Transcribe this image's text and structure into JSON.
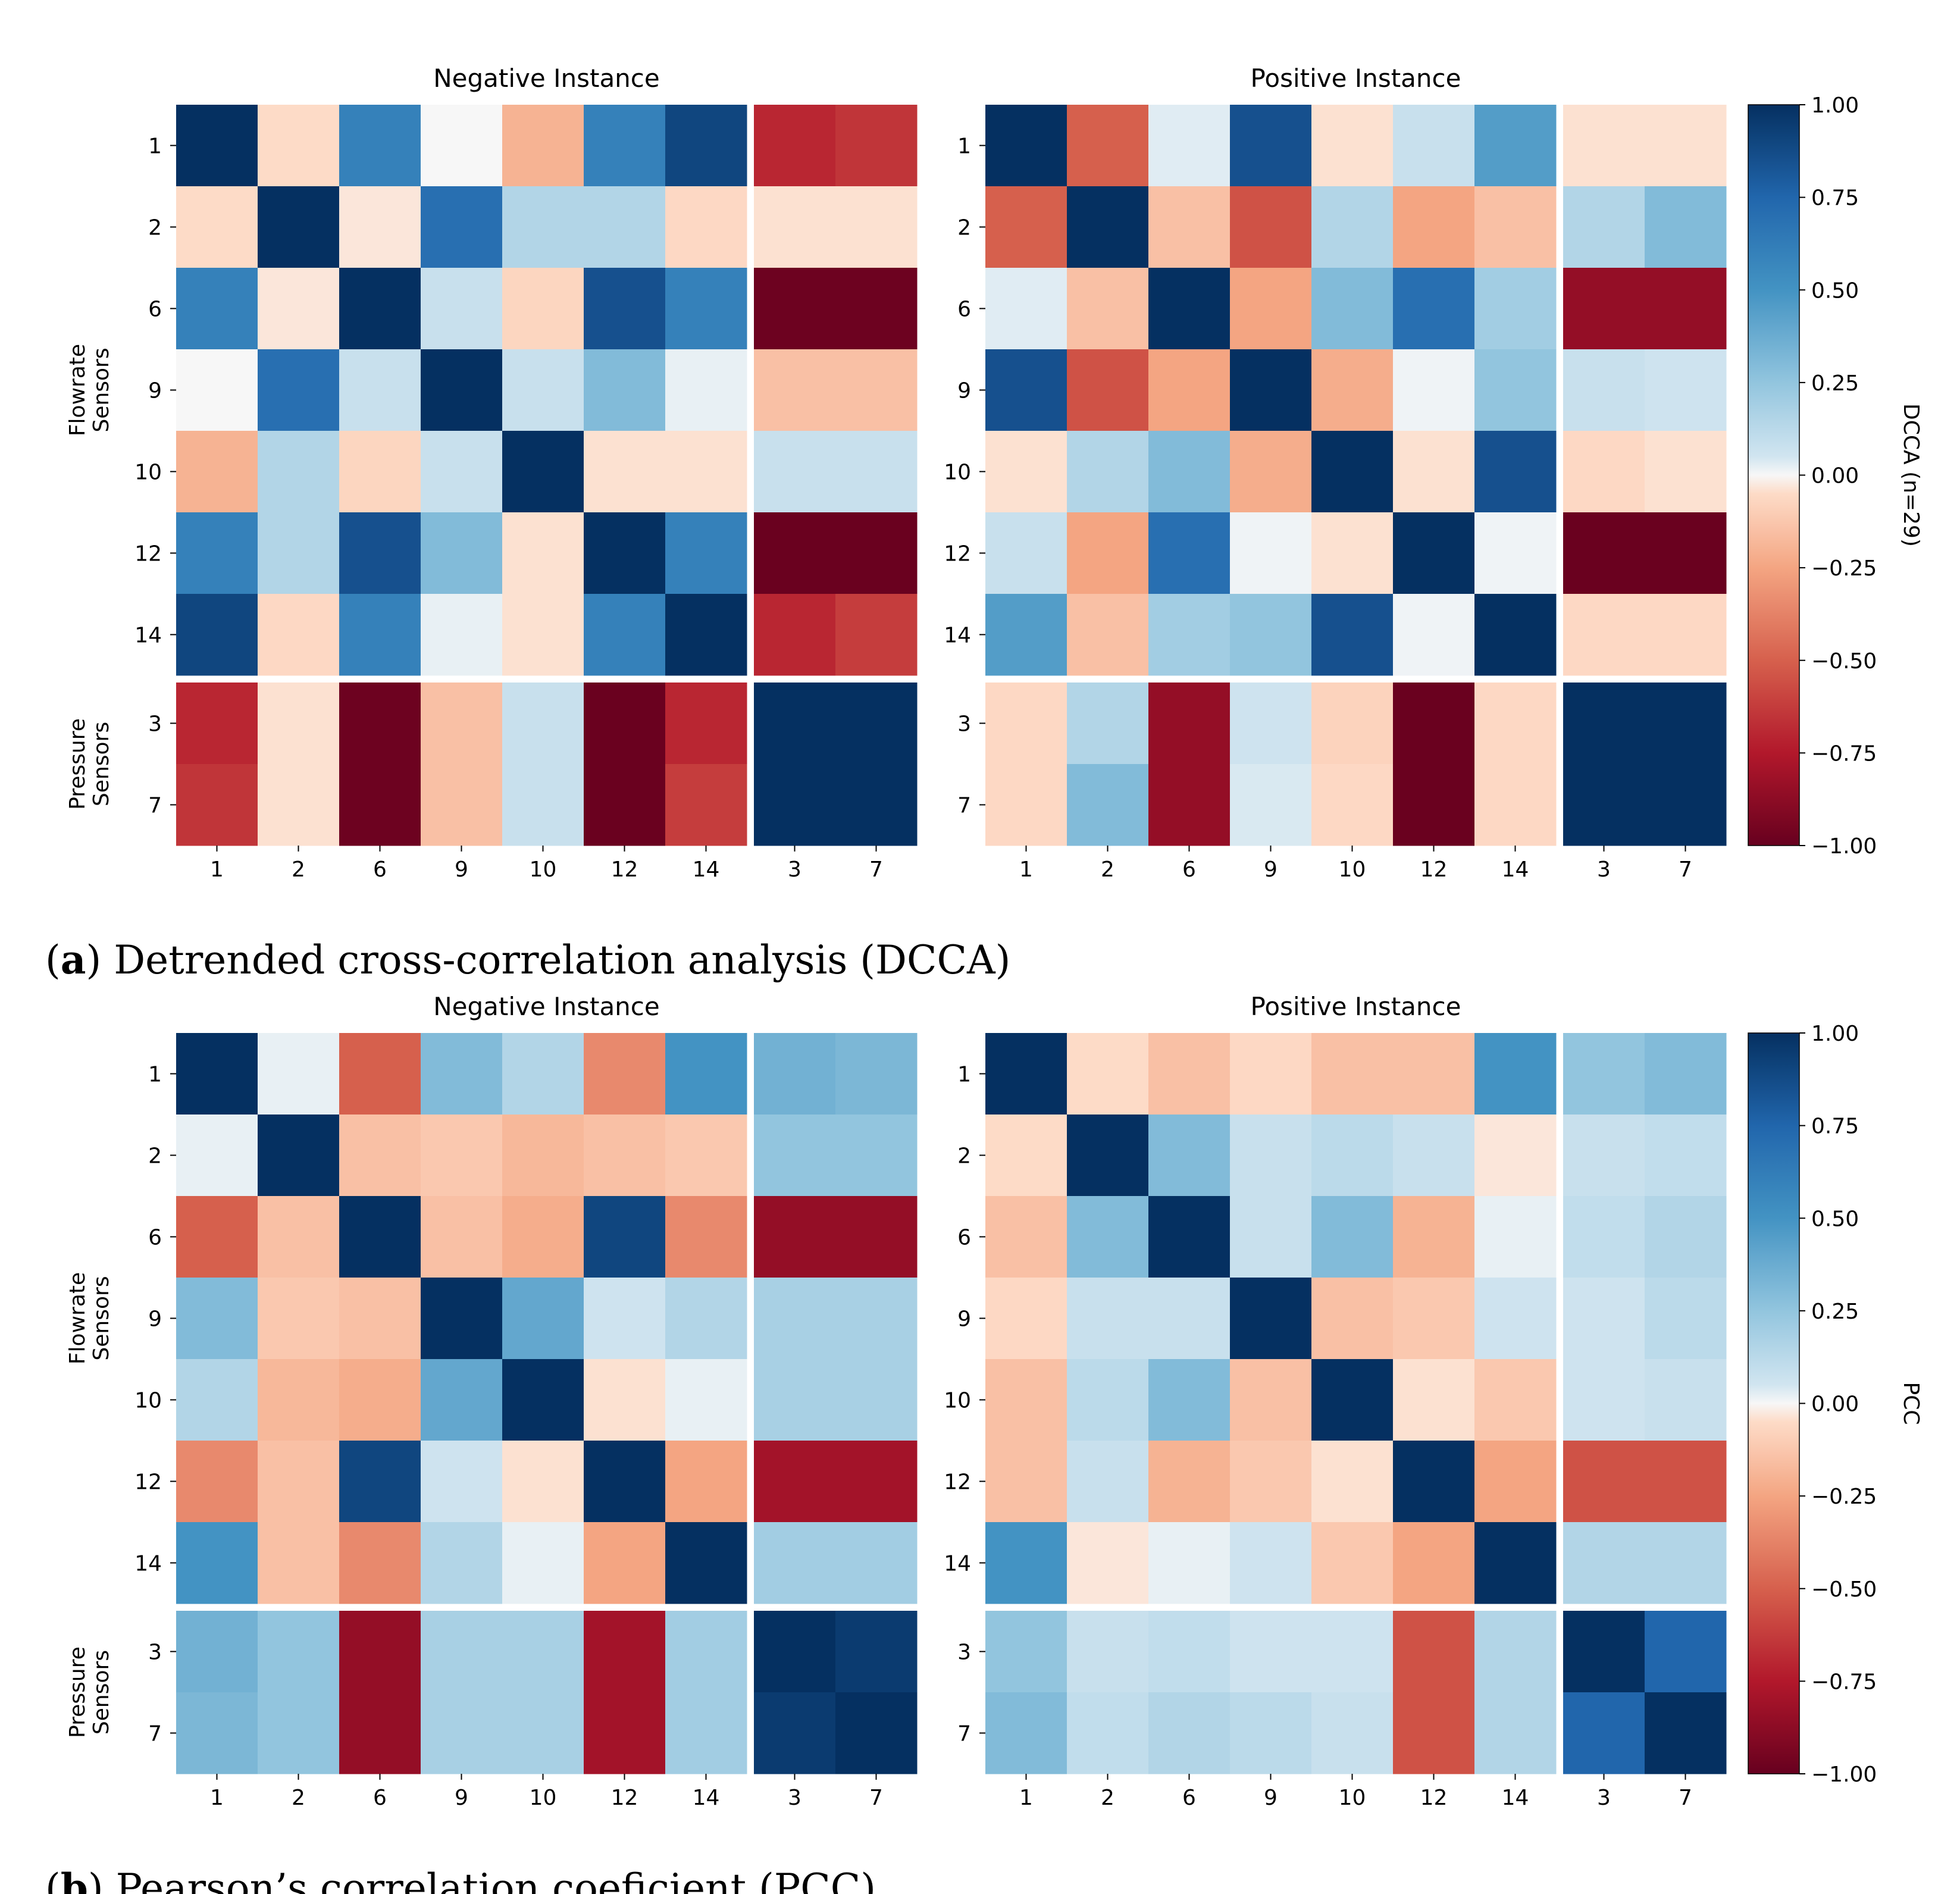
{
  "chart_data": [
    {
      "type": "heatmap",
      "panel_id": "a",
      "caption_letter": "a",
      "caption_text": "Detrended cross-correlation analysis (DCCA)",
      "colorbar_label": "DCCA (n=29)",
      "colorbar_ticks": [
        "1.00",
        "0.75",
        "0.50",
        "0.25",
        "0.00",
        "−0.25",
        "−0.50",
        "−0.75",
        "−1.00"
      ],
      "value_range": [
        -1,
        1
      ],
      "row_groups": [
        {
          "label_line1": "Flowrate",
          "label_line2": "Sensors",
          "count": 7
        },
        {
          "label_line1": "Pressure",
          "label_line2": "Sensors",
          "count": 2
        }
      ],
      "row_labels": [
        "1",
        "2",
        "6",
        "9",
        "10",
        "12",
        "14",
        "3",
        "7"
      ],
      "col_labels": [
        "1",
        "2",
        "6",
        "9",
        "10",
        "12",
        "14",
        "3",
        "7"
      ],
      "subplots": [
        {
          "title": "Negative Instance",
          "matrix": [
            [
              1.0,
              -0.05,
              0.6,
              0.0,
              -0.2,
              0.6,
              0.9,
              -0.7,
              -0.65
            ],
            [
              -0.05,
              1.0,
              -0.03,
              0.7,
              0.15,
              0.15,
              -0.06,
              -0.04,
              -0.04
            ],
            [
              0.6,
              -0.03,
              1.0,
              0.08,
              -0.07,
              0.85,
              0.6,
              -0.98,
              -0.98
            ],
            [
              0.0,
              0.7,
              0.08,
              1.0,
              0.08,
              0.3,
              0.02,
              -0.15,
              -0.15
            ],
            [
              -0.2,
              0.15,
              -0.07,
              0.08,
              1.0,
              -0.04,
              -0.04,
              0.08,
              0.08
            ],
            [
              0.6,
              0.15,
              0.85,
              0.3,
              -0.04,
              1.0,
              0.6,
              -0.99,
              -0.99
            ],
            [
              0.9,
              -0.06,
              0.6,
              0.02,
              -0.04,
              0.6,
              1.0,
              -0.7,
              -0.62
            ],
            [
              -0.7,
              -0.04,
              -0.98,
              -0.15,
              0.08,
              -0.99,
              -0.7,
              1.0,
              1.0
            ],
            [
              -0.65,
              -0.04,
              -0.98,
              -0.15,
              0.08,
              -0.99,
              -0.62,
              1.0,
              1.0
            ]
          ]
        },
        {
          "title": "Positive Instance",
          "matrix": [
            [
              1.0,
              -0.5,
              0.03,
              0.85,
              -0.04,
              0.08,
              0.45,
              -0.04,
              -0.04
            ],
            [
              -0.5,
              1.0,
              -0.15,
              -0.55,
              0.15,
              -0.25,
              -0.15,
              0.15,
              0.3
            ],
            [
              0.03,
              -0.15,
              1.0,
              -0.25,
              0.3,
              0.7,
              0.2,
              -0.85,
              -0.85
            ],
            [
              0.85,
              -0.55,
              -0.25,
              1.0,
              -0.22,
              0.01,
              0.25,
              0.08,
              0.06
            ],
            [
              -0.04,
              0.15,
              0.3,
              -0.22,
              1.0,
              -0.04,
              0.85,
              -0.06,
              -0.04
            ],
            [
              0.08,
              -0.25,
              0.7,
              0.01,
              -0.04,
              1.0,
              0.01,
              -0.99,
              -0.99
            ],
            [
              0.45,
              -0.15,
              0.2,
              0.25,
              0.85,
              0.01,
              1.0,
              -0.06,
              -0.06
            ],
            [
              -0.06,
              0.15,
              -0.85,
              0.06,
              -0.08,
              -0.99,
              -0.06,
              1.0,
              1.0
            ],
            [
              -0.06,
              0.3,
              -0.85,
              0.04,
              -0.06,
              -0.99,
              -0.06,
              1.0,
              1.0
            ]
          ]
        }
      ]
    },
    {
      "type": "heatmap",
      "panel_id": "b",
      "caption_letter": "b",
      "caption_text": "Pearson’s correlation coeficient (PCC)",
      "colorbar_label": "PCC",
      "colorbar_ticks": [
        "1.00",
        "0.75",
        "0.50",
        "0.25",
        "0.00",
        "−0.25",
        "−0.50",
        "−0.75",
        "−1.00"
      ],
      "value_range": [
        -1,
        1
      ],
      "row_groups": [
        {
          "label_line1": "Flowrate",
          "label_line2": "Sensors",
          "count": 7
        },
        {
          "label_line1": "Pressure",
          "label_line2": "Sensors",
          "count": 2
        }
      ],
      "row_labels": [
        "1",
        "2",
        "6",
        "9",
        "10",
        "12",
        "14",
        "3",
        "7"
      ],
      "col_labels": [
        "1",
        "2",
        "6",
        "9",
        "10",
        "12",
        "14",
        "3",
        "7"
      ],
      "subplots": [
        {
          "title": "Negative Instance",
          "matrix": [
            [
              1.0,
              0.02,
              -0.5,
              0.3,
              0.15,
              -0.35,
              0.5,
              0.35,
              0.32
            ],
            [
              0.02,
              1.0,
              -0.15,
              -0.12,
              -0.18,
              -0.15,
              -0.12,
              0.25,
              0.25
            ],
            [
              -0.5,
              -0.15,
              1.0,
              -0.15,
              -0.22,
              0.9,
              -0.35,
              -0.85,
              -0.85
            ],
            [
              0.3,
              -0.12,
              -0.15,
              1.0,
              0.4,
              0.06,
              0.15,
              0.18,
              0.18
            ],
            [
              0.15,
              -0.18,
              -0.22,
              0.4,
              1.0,
              -0.04,
              0.02,
              0.18,
              0.18
            ],
            [
              -0.35,
              -0.15,
              0.9,
              0.06,
              -0.04,
              1.0,
              -0.25,
              -0.8,
              -0.8
            ],
            [
              0.5,
              -0.15,
              -0.35,
              0.15,
              0.02,
              -0.25,
              1.0,
              0.2,
              0.2
            ],
            [
              0.35,
              0.25,
              -0.85,
              0.18,
              0.18,
              -0.8,
              0.2,
              1.0,
              0.95
            ],
            [
              0.32,
              0.25,
              -0.85,
              0.18,
              0.18,
              -0.8,
              0.2,
              0.95,
              1.0
            ]
          ]
        },
        {
          "title": "Positive Instance",
          "matrix": [
            [
              1.0,
              -0.05,
              -0.15,
              -0.06,
              -0.15,
              -0.15,
              0.5,
              0.25,
              0.3
            ],
            [
              -0.05,
              1.0,
              0.3,
              0.08,
              0.12,
              0.08,
              -0.03,
              0.08,
              0.1
            ],
            [
              -0.15,
              0.3,
              1.0,
              0.08,
              0.3,
              -0.2,
              0.02,
              0.1,
              0.15
            ],
            [
              -0.06,
              0.08,
              0.08,
              1.0,
              -0.15,
              -0.12,
              0.06,
              0.06,
              0.12
            ],
            [
              -0.15,
              0.12,
              0.3,
              -0.15,
              1.0,
              -0.04,
              -0.12,
              0.06,
              0.08
            ],
            [
              -0.15,
              0.08,
              -0.2,
              -0.12,
              -0.04,
              1.0,
              -0.25,
              -0.55,
              -0.55
            ],
            [
              0.5,
              -0.03,
              0.02,
              0.06,
              -0.12,
              -0.25,
              1.0,
              0.15,
              0.15
            ],
            [
              0.25,
              0.08,
              0.1,
              0.06,
              0.06,
              -0.55,
              0.15,
              1.0,
              0.75
            ],
            [
              0.3,
              0.1,
              0.15,
              0.12,
              0.08,
              -0.55,
              0.15,
              0.75,
              1.0
            ]
          ]
        }
      ]
    }
  ]
}
